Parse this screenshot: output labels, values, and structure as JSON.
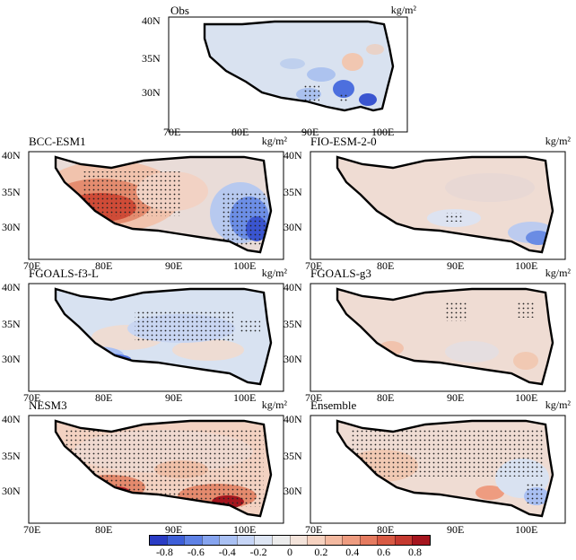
{
  "figure": {
    "panels": [
      {
        "id": "obs",
        "title": "Obs",
        "unit": "kg/m²",
        "lat_ticks": [
          "40N",
          "35N",
          "30N"
        ],
        "lon_ticks": [
          "70E",
          "80E",
          "90E",
          "100E"
        ],
        "stippled": true
      },
      {
        "id": "bcc",
        "title": "BCC-ESM1",
        "unit": "kg/m²",
        "lat_ticks": [
          "40N",
          "35N",
          "30N"
        ],
        "lon_ticks": [
          "70E",
          "80E",
          "90E",
          "100E"
        ],
        "stippled": true
      },
      {
        "id": "fio",
        "title": "FIO-ESM-2-0",
        "unit": "kg/m²",
        "lat_ticks": [
          "40N",
          "35N",
          "30N"
        ],
        "lon_ticks": [
          "70E",
          "80E",
          "90E",
          "100E"
        ],
        "stippled": true
      },
      {
        "id": "fgl",
        "title": "FGOALS-f3-L",
        "unit": "kg/m²",
        "lat_ticks": [
          "40N",
          "35N",
          "30N"
        ],
        "lon_ticks": [
          "70E",
          "80E",
          "90E",
          "100E"
        ],
        "stippled": true
      },
      {
        "id": "fgg",
        "title": "FGOALS-g3",
        "unit": "kg/m²",
        "lat_ticks": [
          "40N",
          "35N",
          "30N"
        ],
        "lon_ticks": [
          "70E",
          "80E",
          "90E",
          "100E"
        ],
        "stippled": true
      },
      {
        "id": "nesm",
        "title": "NESM3",
        "unit": "kg/m²",
        "lat_ticks": [
          "40N",
          "35N",
          "30N"
        ],
        "lon_ticks": [
          "70E",
          "80E",
          "90E",
          "100E"
        ],
        "stippled": true
      },
      {
        "id": "ens",
        "title": "Ensemble",
        "unit": "kg/m²",
        "lat_ticks": [
          "40N",
          "35N",
          "30N"
        ],
        "lon_ticks": [
          "70E",
          "80E",
          "90E",
          "100E"
        ],
        "stippled": true
      }
    ]
  },
  "colorbar": {
    "labels": [
      "-0.8",
      "-0.6",
      "-0.4",
      "-0.2",
      "0",
      "0.2",
      "0.4",
      "0.6",
      "0.8"
    ],
    "colors": [
      "#2a3cc4",
      "#3e5fd8",
      "#5f82e6",
      "#86a4ef",
      "#a9c0f3",
      "#c6d5f6",
      "#dde5f3",
      "#ececec",
      "#f3e3da",
      "#f6d2c0",
      "#f3b9a0",
      "#ee9c80",
      "#e57b60",
      "#d85a44",
      "#c53a30",
      "#a5151e"
    ],
    "value_range": [
      -0.9,
      0.9
    ]
  }
}
